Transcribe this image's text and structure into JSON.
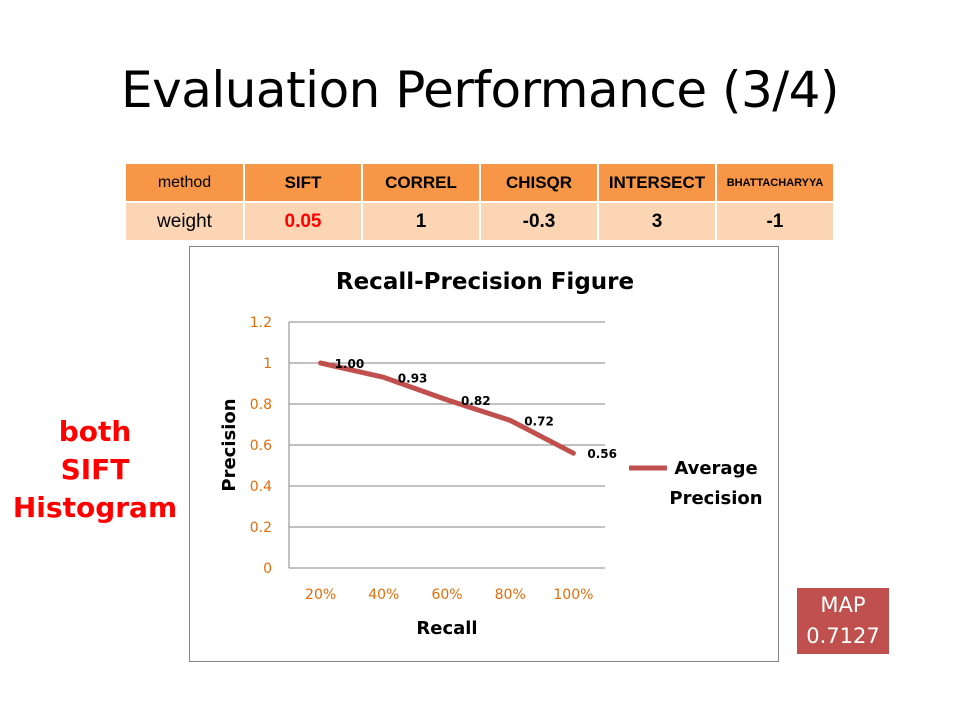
{
  "slide": {
    "title": "Evaluation Performance (3/4)",
    "side_note": [
      "both",
      "SIFT",
      "Histogram"
    ],
    "map_badge": {
      "label": "MAP",
      "value": "0.7127"
    }
  },
  "weights_table": {
    "header": [
      "method",
      "SIFT",
      "CORREL",
      "CHISQR",
      "INTERSECT",
      "BHATTACHARYYA"
    ],
    "row": [
      "weight",
      "0.05",
      "1",
      "-0.3",
      "3",
      "-1"
    ]
  },
  "colors": {
    "header_fill": "#f79646",
    "row_fill": "#fcd5b5",
    "line": "#c0504d",
    "tick_text": "#e36c09",
    "note_red": "#ff0000"
  },
  "chart_data": {
    "type": "line",
    "title": "Recall-Precision Figure",
    "xlabel": "Recall",
    "ylabel": "Precision",
    "categories": [
      "20%",
      "40%",
      "60%",
      "80%",
      "100%"
    ],
    "y_ticks": [
      "0",
      "0.2",
      "0.4",
      "0.6",
      "0.8",
      "1",
      "1.2"
    ],
    "ylim": [
      0,
      1.2
    ],
    "grid": true,
    "legend_position": "right",
    "series": [
      {
        "name": "Average Precision",
        "values": [
          1.0,
          0.93,
          0.82,
          0.72,
          0.56
        ],
        "labels": [
          "1.00",
          "0.93",
          "0.82",
          "0.72",
          "0.56"
        ]
      }
    ]
  }
}
